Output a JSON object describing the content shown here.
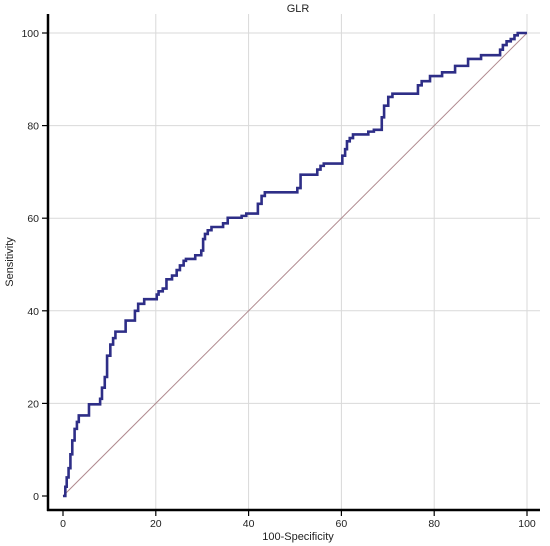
{
  "chart_data": {
    "type": "line",
    "title": "GLR",
    "xlabel": "100-Specificity",
    "ylabel": "Sensitivity",
    "xlim": [
      0,
      100
    ],
    "ylim": [
      0,
      100
    ],
    "xticks": [
      0,
      20,
      40,
      60,
      80,
      100
    ],
    "yticks": [
      0,
      20,
      40,
      60,
      80,
      100
    ],
    "grid": true,
    "colors": {
      "roc": "#2e2e87",
      "reference": "#b08a8f",
      "grid": "#d9d9d9",
      "axis": "#000000"
    },
    "series": [
      {
        "values": [
          [
            0,
            0
          ],
          [
            0.5,
            0
          ],
          [
            0.5,
            2
          ],
          [
            0.8,
            2
          ],
          [
            0.8,
            4
          ],
          [
            1.2,
            4
          ],
          [
            1.2,
            6
          ],
          [
            1.6,
            6
          ],
          [
            1.6,
            9
          ],
          [
            2,
            9
          ],
          [
            2,
            12
          ],
          [
            2.5,
            12
          ],
          [
            2.5,
            14.5
          ],
          [
            3,
            14.5
          ],
          [
            3,
            16
          ],
          [
            3.4,
            16
          ],
          [
            3.4,
            17.4
          ],
          [
            5.6,
            17.4
          ],
          [
            5.6,
            19.8
          ],
          [
            8,
            19.8
          ],
          [
            8,
            21
          ],
          [
            8.4,
            21
          ],
          [
            8.4,
            23.4
          ],
          [
            9,
            23.4
          ],
          [
            9,
            25.7
          ],
          [
            9.5,
            25.7
          ],
          [
            9.5,
            30.3
          ],
          [
            10.2,
            30.3
          ],
          [
            10.2,
            32.7
          ],
          [
            10.8,
            32.7
          ],
          [
            10.8,
            34.1
          ],
          [
            11.3,
            34.1
          ],
          [
            11.3,
            35.5
          ],
          [
            13.5,
            35.5
          ],
          [
            13.5,
            37.9
          ],
          [
            15.5,
            37.9
          ],
          [
            15.5,
            40
          ],
          [
            16.2,
            40
          ],
          [
            16.2,
            41.5
          ],
          [
            17.5,
            41.5
          ],
          [
            17.5,
            42.5
          ],
          [
            20.2,
            42.5
          ],
          [
            20.2,
            43.5
          ],
          [
            20.6,
            43.5
          ],
          [
            20.6,
            44.2
          ],
          [
            21.5,
            44.2
          ],
          [
            21.5,
            44.8
          ],
          [
            22.3,
            44.8
          ],
          [
            22.3,
            46.8
          ],
          [
            23.5,
            46.8
          ],
          [
            23.5,
            47.6
          ],
          [
            24.5,
            47.6
          ],
          [
            24.5,
            48.8
          ],
          [
            25.2,
            48.8
          ],
          [
            25.2,
            49.8
          ],
          [
            26,
            49.8
          ],
          [
            26,
            50.8
          ],
          [
            26.5,
            50.8
          ],
          [
            26.5,
            51.2
          ],
          [
            28.5,
            51.2
          ],
          [
            28.5,
            52
          ],
          [
            29.8,
            52
          ],
          [
            29.8,
            53
          ],
          [
            30.2,
            53
          ],
          [
            30.2,
            55.5
          ],
          [
            30.6,
            55.5
          ],
          [
            30.6,
            56.6
          ],
          [
            31.2,
            56.6
          ],
          [
            31.2,
            57.4
          ],
          [
            32,
            57.4
          ],
          [
            32,
            58.1
          ],
          [
            34.5,
            58.1
          ],
          [
            34.5,
            58.9
          ],
          [
            35.5,
            58.9
          ],
          [
            35.5,
            60.1
          ],
          [
            38.5,
            60.1
          ],
          [
            38.5,
            60.5
          ],
          [
            39.5,
            60.5
          ],
          [
            39.5,
            61
          ],
          [
            42,
            61
          ],
          [
            42,
            63.1
          ],
          [
            42.8,
            63.1
          ],
          [
            42.8,
            64.8
          ],
          [
            43.5,
            64.8
          ],
          [
            43.5,
            65.6
          ],
          [
            50.5,
            65.6
          ],
          [
            50.5,
            66.5
          ],
          [
            51.2,
            66.5
          ],
          [
            51.2,
            69.4
          ],
          [
            54.8,
            69.4
          ],
          [
            54.8,
            70.5
          ],
          [
            55.5,
            70.5
          ],
          [
            55.5,
            71.3
          ],
          [
            56.2,
            71.3
          ],
          [
            56.2,
            71.8
          ],
          [
            60.2,
            71.8
          ],
          [
            60.2,
            73.5
          ],
          [
            60.8,
            73.5
          ],
          [
            60.8,
            74.9
          ],
          [
            61.2,
            74.9
          ],
          [
            61.2,
            76.6
          ],
          [
            61.8,
            76.6
          ],
          [
            61.8,
            77.3
          ],
          [
            62.5,
            77.3
          ],
          [
            62.5,
            78.1
          ],
          [
            65.8,
            78.1
          ],
          [
            65.8,
            78.7
          ],
          [
            67,
            78.7
          ],
          [
            67,
            79.1
          ],
          [
            68.7,
            79.1
          ],
          [
            68.7,
            81.8
          ],
          [
            69.2,
            81.8
          ],
          [
            69.2,
            84.3
          ],
          [
            70.1,
            84.3
          ],
          [
            70.1,
            86.2
          ],
          [
            71,
            86.2
          ],
          [
            71,
            86.9
          ],
          [
            76.5,
            86.9
          ],
          [
            76.5,
            88.7
          ],
          [
            77.3,
            88.7
          ],
          [
            77.3,
            89.6
          ],
          [
            79.1,
            89.6
          ],
          [
            79.1,
            90.7
          ],
          [
            81.7,
            90.7
          ],
          [
            81.7,
            91.5
          ],
          [
            84.5,
            91.5
          ],
          [
            84.5,
            92.9
          ],
          [
            87.3,
            92.9
          ],
          [
            87.3,
            94.4
          ],
          [
            90.1,
            94.4
          ],
          [
            90.1,
            95.2
          ],
          [
            94.2,
            95.2
          ],
          [
            94.2,
            96.4
          ],
          [
            94.8,
            96.4
          ],
          [
            94.8,
            97.4
          ],
          [
            95.6,
            97.4
          ],
          [
            95.6,
            98.2
          ],
          [
            96.5,
            98.2
          ],
          [
            96.5,
            98.7
          ],
          [
            97.3,
            98.7
          ],
          [
            97.3,
            99.5
          ],
          [
            98,
            99.5
          ],
          [
            98,
            100
          ],
          [
            100,
            100
          ]
        ]
      }
    ],
    "reference_line": [
      [
        0,
        0
      ],
      [
        100,
        100
      ]
    ]
  }
}
